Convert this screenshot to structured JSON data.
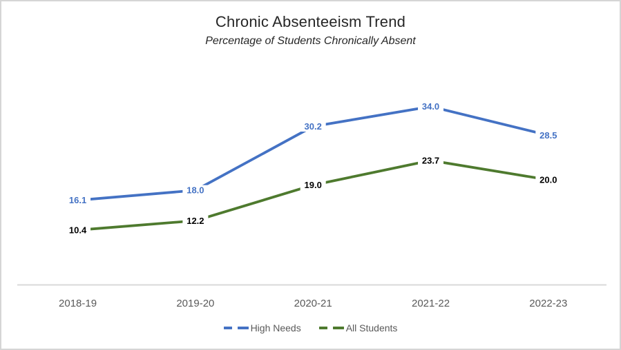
{
  "window": {
    "background": "#ffffff",
    "frame_border_color": "#d5d5d5"
  },
  "chart_data": {
    "type": "line",
    "title": "Chronic Absenteeism Trend",
    "subtitle": "Percentage of Students Chronically Absent",
    "categories": [
      "2018-19",
      "2019-20",
      "2020-21",
      "2021-22",
      "2022-23"
    ],
    "series": [
      {
        "name": "High Needs",
        "values": [
          16.1,
          18.0,
          30.2,
          34.0,
          28.5
        ],
        "color": "#4472C4",
        "label_color": "#4472C4"
      },
      {
        "name": "All Students",
        "values": [
          10.4,
          12.2,
          19.0,
          23.7,
          20.0
        ],
        "color": "#4E7A2E",
        "label_color": "#000000"
      }
    ],
    "ylim": [
      0,
      40
    ],
    "grid": false,
    "y_axis_visible": false,
    "data_label_position": "center",
    "data_label_decimals": 1,
    "x_axis_line_color": "#D9D9D9",
    "axis_label_color": "#595959",
    "legend_position": "bottom",
    "legend_text_color": "#595959"
  }
}
